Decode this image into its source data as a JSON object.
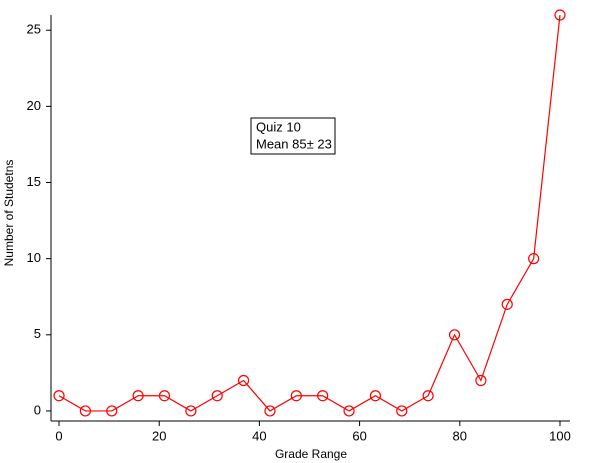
{
  "chart_data": {
    "type": "line",
    "x_label": "Grade Range",
    "y_label": "Number of Studetns",
    "annotation": [
      "Quiz 10",
      "Mean 85± 23"
    ],
    "x": [
      0,
      5.26,
      10.53,
      15.79,
      21.05,
      26.32,
      31.58,
      36.84,
      42.11,
      47.37,
      52.63,
      57.89,
      63.16,
      68.42,
      73.68,
      78.95,
      84.21,
      89.47,
      94.74,
      100
    ],
    "series": [
      {
        "name": "Quiz 10",
        "color": "#ff0000",
        "values": [
          1,
          0,
          0,
          1,
          1,
          0,
          1,
          2,
          0,
          1,
          1,
          0,
          1,
          0,
          1,
          5,
          2,
          7,
          10,
          26
        ]
      }
    ],
    "xlim": [
      -1.6,
      102
    ],
    "ylim": [
      -0.66,
      26
    ],
    "xticks": [
      0,
      20,
      40,
      60,
      80,
      100
    ],
    "yticks": [
      0,
      5,
      10,
      15,
      20,
      25
    ]
  }
}
